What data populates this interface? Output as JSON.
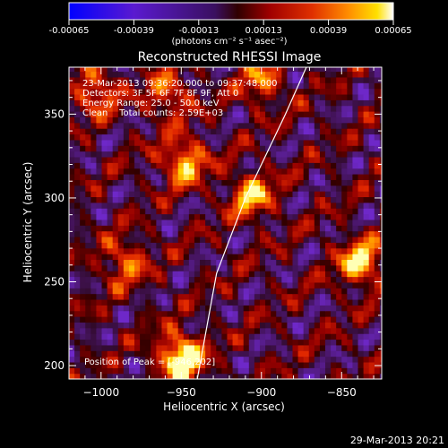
{
  "chart_data": {
    "type": "heatmap",
    "title": "Reconstructed RHESSI Image",
    "xlabel": "Heliocentric X (arcsec)",
    "ylabel": "Heliocentric Y (arcsec)",
    "xlim": [
      -1020,
      -825
    ],
    "ylim": [
      192,
      378
    ],
    "xticks": [
      -1000,
      -950,
      -900,
      -850
    ],
    "yticks": [
      200,
      250,
      300,
      350
    ],
    "colorbar": {
      "ticks": [
        "-0.00065",
        "-0.00039",
        "-0.00013",
        "0.00013",
        "0.00039",
        "0.00065"
      ],
      "range": [
        -0.00065,
        0.00065
      ],
      "unit": "(photons cm⁻² s⁻¹ asec⁻²)"
    },
    "annotations": [
      "23-Mar-2013 09:36:20.000 to 09:37:48.000",
      "Detectors: 3F 5F 6F 7F 8F 9F, Att 0",
      "Energy Range: 25.0 - 50.0 keV",
      "Clean    Total counts: 2.59E+03"
    ],
    "peak_label": "Position of Peak = [-946,202]",
    "peak": [
      -946,
      202
    ],
    "limb_curve": [
      [
        -940,
        192
      ],
      [
        -928,
        255
      ],
      [
        -910,
        300
      ],
      [
        -885,
        350
      ],
      [
        -872,
        378
      ]
    ],
    "bright_sources": [
      {
        "x": -950,
        "y": 205,
        "v": 1.0
      },
      {
        "x": -948,
        "y": 322,
        "v": 0.7
      },
      {
        "x": -838,
        "y": 262,
        "v": 0.75
      },
      {
        "x": -906,
        "y": 302,
        "v": 0.65
      },
      {
        "x": -1003,
        "y": 364,
        "v": 0.55
      },
      {
        "x": -958,
        "y": 362,
        "v": 0.5
      },
      {
        "x": -985,
        "y": 262,
        "v": 0.5
      },
      {
        "x": -900,
        "y": 370,
        "v": 0.5
      }
    ],
    "grid": false
  },
  "footer": {
    "date": "29-Mar-2013 20:21"
  }
}
